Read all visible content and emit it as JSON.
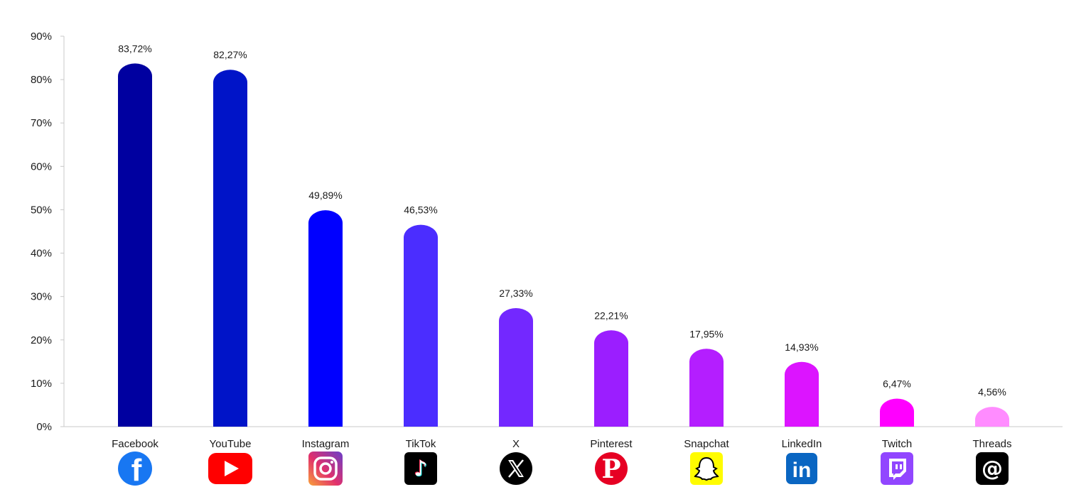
{
  "chart_data": {
    "type": "bar",
    "categories": [
      "Facebook",
      "YouTube",
      "Instagram",
      "TikTok",
      "X",
      "Pinterest",
      "Snapchat",
      "LinkedIn",
      "Twitch",
      "Threads"
    ],
    "values": [
      83.72,
      82.27,
      49.89,
      46.53,
      27.33,
      22.21,
      17.95,
      14.93,
      6.47,
      4.56
    ],
    "value_labels": [
      "83,72%",
      "82,27%",
      "49,89%",
      "46,53%",
      "27,33%",
      "22,21%",
      "17,95%",
      "14,93%",
      "6,47%",
      "4,56%"
    ],
    "bar_colors": [
      "#0000a0",
      "#0014c8",
      "#0000ff",
      "#4b2dff",
      "#7328ff",
      "#9b1eff",
      "#b41eff",
      "#dc14ff",
      "#ff00ff",
      "#ff8cff"
    ],
    "icons": [
      "facebook-icon",
      "youtube-icon",
      "instagram-icon",
      "tiktok-icon",
      "x-icon",
      "pinterest-icon",
      "snapchat-icon",
      "linkedin-icon",
      "twitch-icon",
      "threads-icon"
    ],
    "y_ticks": [
      "0%",
      "10%",
      "20%",
      "30%",
      "40%",
      "50%",
      "60%",
      "70%",
      "80%",
      "90%"
    ],
    "ylim": [
      0,
      90
    ],
    "title": "",
    "xlabel": "",
    "ylabel": "",
    "grid": false,
    "legend": "none"
  }
}
